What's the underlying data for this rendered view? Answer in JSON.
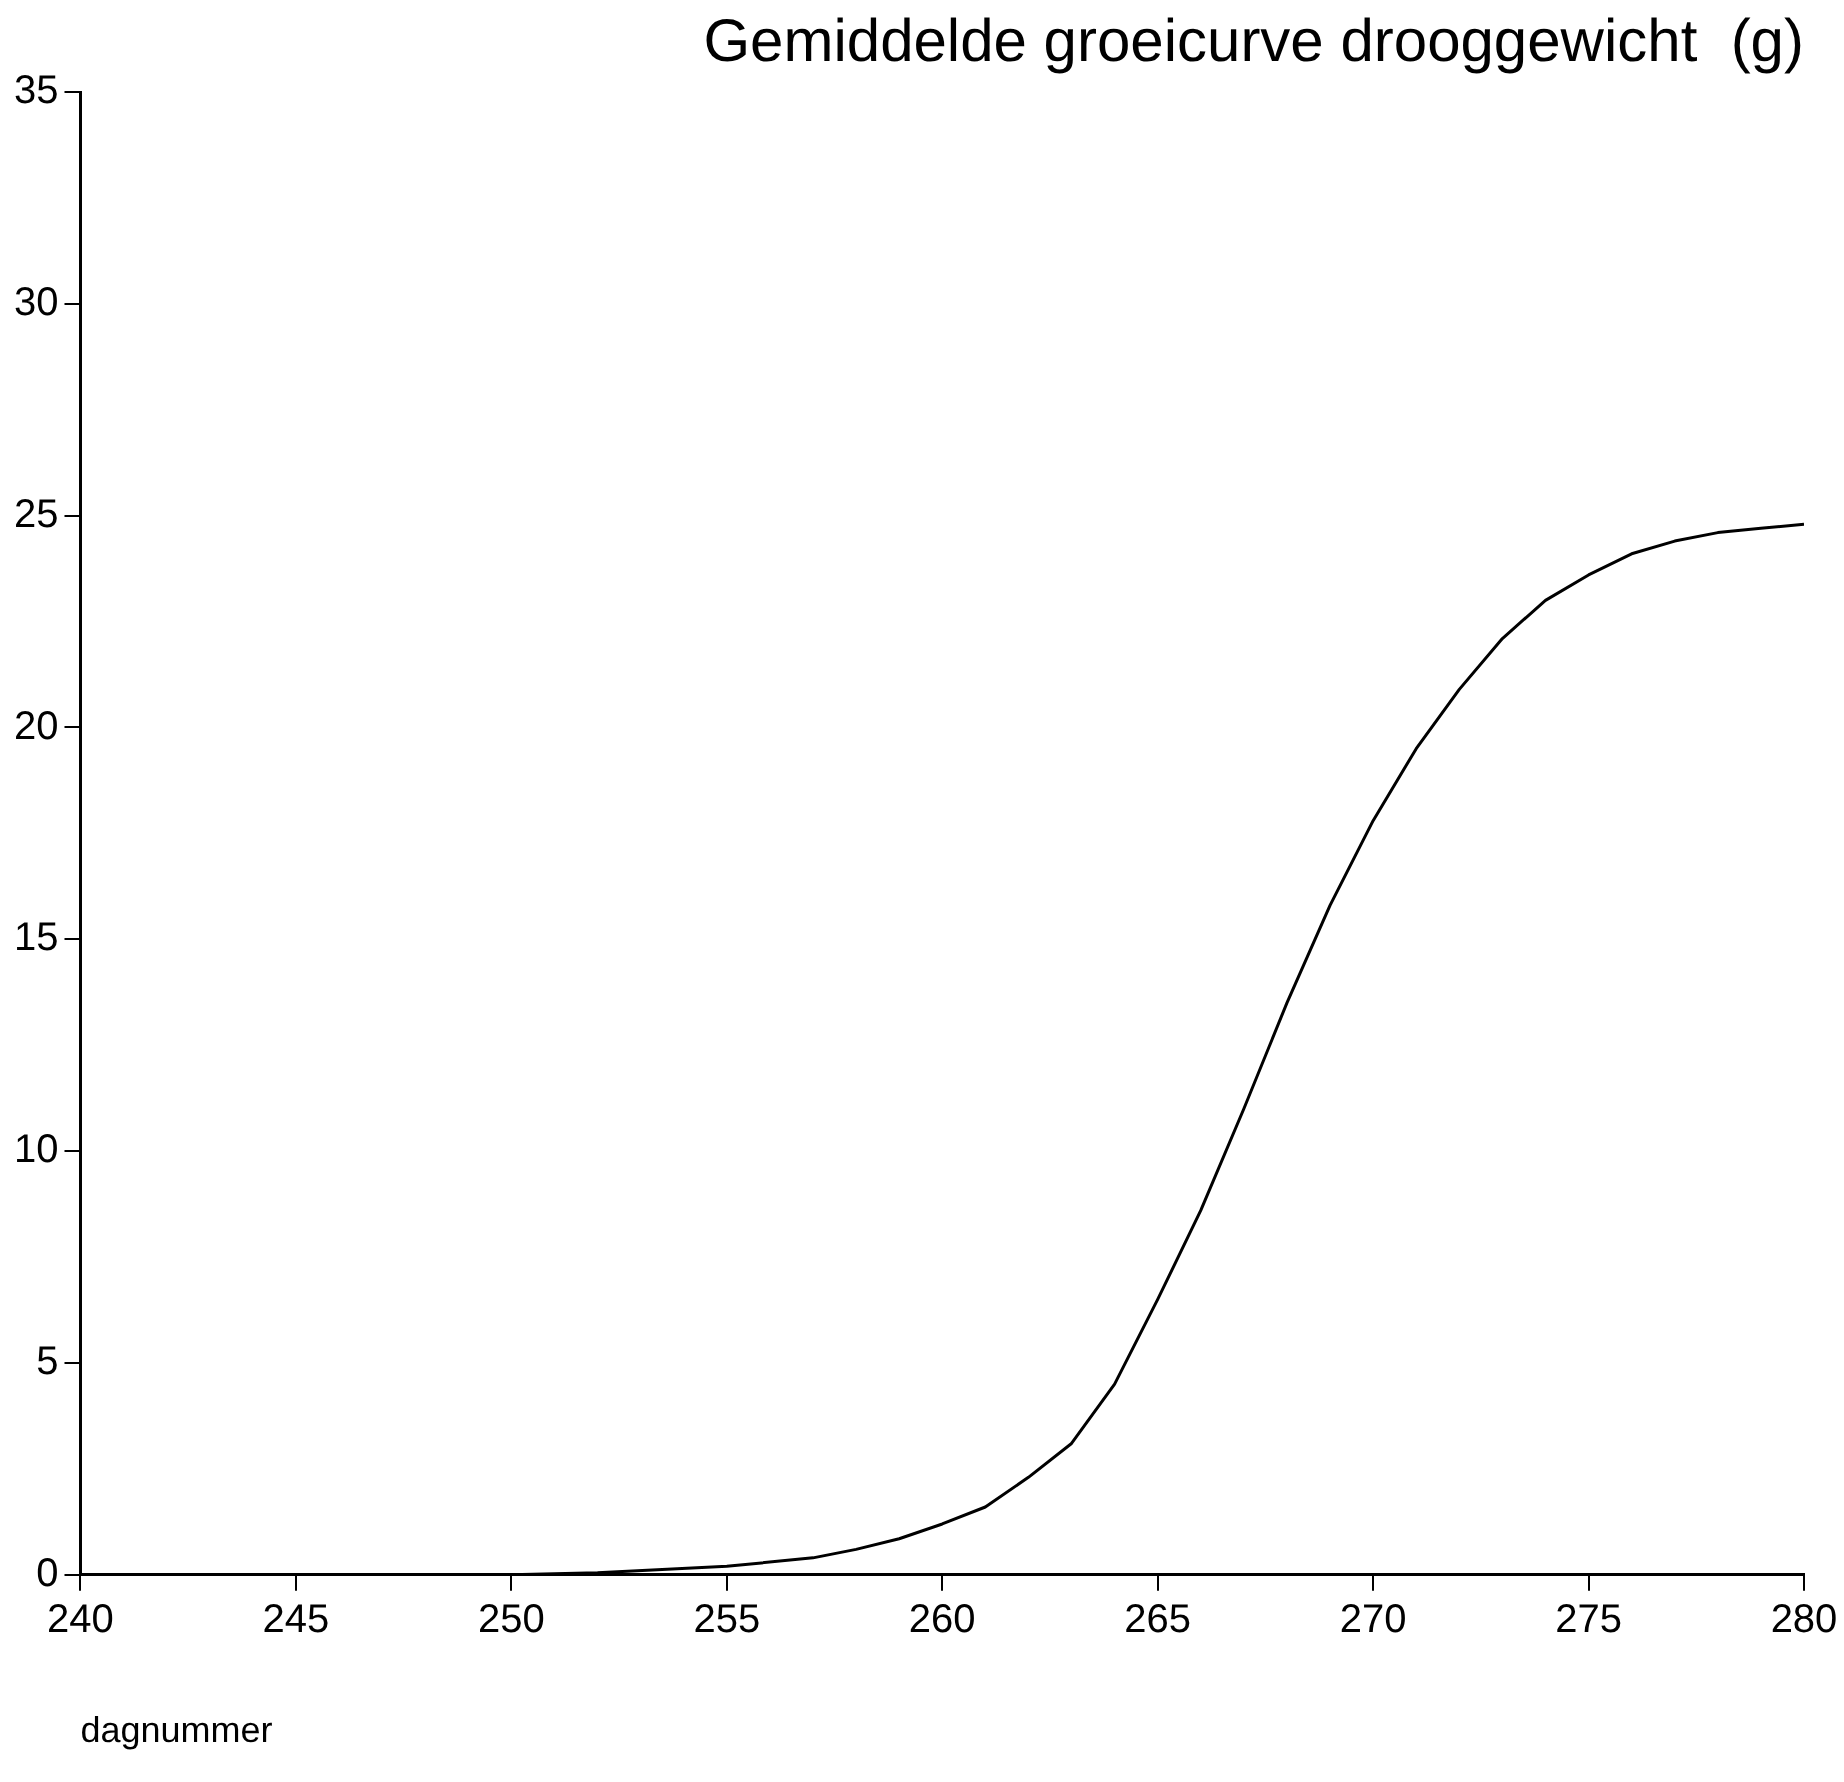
{
  "chart_data": {
    "type": "line",
    "title": "Gemiddelde groeicurve drooggewicht  (g)",
    "xlabel": "dagnummer",
    "x": [
      240,
      245,
      250,
      252,
      255,
      257,
      258,
      259,
      260,
      261,
      262,
      263,
      264,
      265,
      266,
      267,
      268,
      269,
      270,
      271,
      272,
      273,
      274,
      275,
      276,
      277,
      278,
      279,
      280
    ],
    "series": [
      {
        "color": "#000000",
        "values": [
          0,
          0,
          0,
          0.05,
          0.2,
          0.4,
          0.6,
          0.85,
          1.2,
          1.6,
          2.3,
          3.1,
          4.5,
          6.5,
          8.6,
          11,
          13.5,
          15.8,
          17.8,
          19.5,
          20.9,
          22.1,
          23,
          23.6,
          24.1,
          24.4,
          24.6,
          24.7,
          24.8
        ]
      }
    ],
    "xlim": [
      240,
      280
    ],
    "xticks": [
      240,
      245,
      250,
      255,
      260,
      265,
      270,
      275,
      280
    ],
    "ylim": [
      0,
      35
    ],
    "yticks": [
      0,
      5,
      10,
      15,
      20,
      25,
      30,
      35
    ],
    "grid": false,
    "legend": false,
    "marker": "none",
    "line_style": "solid"
  }
}
